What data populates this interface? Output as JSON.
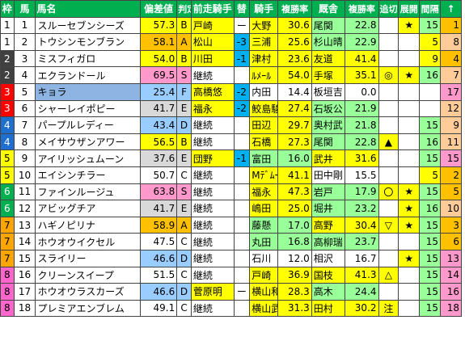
{
  "headers": [
    "枠",
    "馬",
    "馬名",
    "偏差値",
    "判定",
    "前走騎手",
    "替",
    "騎手",
    "複勝率",
    "厩舎",
    "複勝率",
    "追切",
    "展開",
    "間隔",
    "↑"
  ],
  "wakuColors": {
    "1": "#ffffff",
    "2": "#404040",
    "3": "#ff0000",
    "4": "#1f6fd1",
    "5": "#ffff00",
    "6": "#00b050",
    "7": "#ffa500",
    "8": "#ff66cc"
  },
  "rows": [
    {
      "waku": "1",
      "num": "1",
      "name": "スルーセブンシーズ",
      "score": "57.3",
      "grade": "B",
      "prev": "戸崎",
      "swap": "ー",
      "jockey": "大野",
      "jrate": "30.6",
      "stable": "尾関",
      "srate": "22.8",
      "oikiri": "",
      "tenkai": "★",
      "interval": "15",
      "arrow": "1"
    },
    {
      "waku": "1",
      "num": "2",
      "name": "トウシンモンブラン",
      "score": "58.1",
      "grade": "A",
      "prev": "松山",
      "swap": "-3",
      "jockey": "三浦",
      "jrate": "25.6",
      "stable": "杉山晴",
      "srate": "22.9",
      "oikiri": "",
      "tenkai": "",
      "interval": "5",
      "arrow": "8"
    },
    {
      "waku": "2",
      "num": "3",
      "name": "ミスフィガロ",
      "score": "54.0",
      "grade": "B",
      "prev": "川田",
      "swap": "-1",
      "jockey": "津村",
      "jrate": "23.6",
      "stable": "友道",
      "srate": "41.4",
      "oikiri": "",
      "tenkai": "",
      "interval": "9",
      "arrow": "4"
    },
    {
      "waku": "2",
      "num": "4",
      "name": "エクランドール",
      "score": "69.5",
      "grade": "S",
      "prev": "継続",
      "swap": "",
      "jockey": "ﾙﾒｰﾙ",
      "jrate": "54.0",
      "stable": "手塚",
      "srate": "35.1",
      "oikiri": "◎",
      "tenkai": "★",
      "interval": "16",
      "arrow": "7"
    },
    {
      "waku": "3",
      "num": "5",
      "name": "キョラ",
      "score": "25.4",
      "grade": "F",
      "prev": "高橋悠",
      "swap": "-2",
      "jockey": "内田",
      "jrate": "14.4",
      "stable": "板垣吉",
      "srate": "0.0",
      "oikiri": "",
      "tenkai": "",
      "interval": "",
      "arrow": "17"
    },
    {
      "waku": "3",
      "num": "6",
      "name": "シャーレイポピー",
      "score": "41.7",
      "grade": "E",
      "prev": "福永",
      "swap": "-2",
      "jockey": "鮫島駿",
      "jrate": "27.4",
      "stable": "石坂公",
      "srate": "21.9",
      "oikiri": "",
      "tenkai": "",
      "interval": "",
      "arrow": "12"
    },
    {
      "waku": "4",
      "num": "7",
      "name": "パープルレディー",
      "score": "43.4",
      "grade": "D",
      "prev": "継続",
      "swap": "",
      "jockey": "田辺",
      "jrate": "29.7",
      "stable": "奥村武",
      "srate": "21.8",
      "oikiri": "",
      "tenkai": "",
      "interval": "15",
      "arrow": "9"
    },
    {
      "waku": "4",
      "num": "8",
      "name": "メイサウザンアワー",
      "score": "56.5",
      "grade": "B",
      "prev": "継続",
      "swap": "",
      "jockey": "石橋",
      "jrate": "27.3",
      "stable": "尾関",
      "srate": "22.8",
      "oikiri": "▲",
      "tenkai": "",
      "interval": "16",
      "arrow": "11"
    },
    {
      "waku": "5",
      "num": "9",
      "name": "アイリッシュムーン",
      "score": "37.6",
      "grade": "E",
      "prev": "団野",
      "swap": "-1",
      "jockey": "富田",
      "jrate": "16.0",
      "stable": "武井",
      "srate": "31.6",
      "oikiri": "",
      "tenkai": "",
      "interval": "15",
      "arrow": "15"
    },
    {
      "waku": "5",
      "num": "10",
      "name": "エイシンチラー",
      "score": "50.7",
      "grade": "C",
      "prev": "継続",
      "swap": "",
      "jockey": "Mﾃﾞﾑｰﾛ",
      "jrate": "41.1",
      "stable": "田中剛",
      "srate": "15.5",
      "oikiri": "",
      "tenkai": "",
      "interval": "5",
      "arrow": "2"
    },
    {
      "waku": "6",
      "num": "11",
      "name": "ファインルージュ",
      "score": "63.8",
      "grade": "S",
      "prev": "継続",
      "swap": "",
      "jockey": "福永",
      "jrate": "47.3",
      "stable": "岩戸",
      "srate": "17.9",
      "oikiri": "〇",
      "tenkai": "★",
      "interval": "15",
      "arrow": "5"
    },
    {
      "waku": "6",
      "num": "12",
      "name": "アビッグチア",
      "score": "41.7",
      "grade": "E",
      "prev": "継続",
      "swap": "",
      "jockey": "嶋田",
      "jrate": "25.0",
      "stable": "堀井",
      "srate": "23.2",
      "oikiri": "",
      "tenkai": "★",
      "interval": "16",
      "arrow": "10"
    },
    {
      "waku": "7",
      "num": "13",
      "name": "ハギノピリナ",
      "score": "58.9",
      "grade": "A",
      "prev": "継続",
      "swap": "",
      "jockey": "藤懸",
      "jrate": "17.0",
      "stable": "高野",
      "srate": "30.4",
      "oikiri": "▽",
      "tenkai": "★",
      "interval": "15",
      "arrow": "3"
    },
    {
      "waku": "7",
      "num": "14",
      "name": "ホウオウイクセル",
      "score": "47.5",
      "grade": "C",
      "prev": "継続",
      "swap": "",
      "jockey": "丸田",
      "jrate": "16.8",
      "stable": "高柳瑞",
      "srate": "23.7",
      "oikiri": "",
      "tenkai": "",
      "interval": "15",
      "arrow": "6"
    },
    {
      "waku": "7",
      "num": "15",
      "name": "スライリー",
      "score": "46.6",
      "grade": "D",
      "prev": "継続",
      "swap": "",
      "jockey": "石川",
      "jrate": "12.0",
      "stable": "相沢",
      "srate": "16.7",
      "oikiri": "",
      "tenkai": "★",
      "interval": "15",
      "arrow": "13"
    },
    {
      "waku": "8",
      "num": "16",
      "name": "クリーンスイープ",
      "score": "51.5",
      "grade": "C",
      "prev": "継続",
      "swap": "",
      "jockey": "戸崎",
      "jrate": "36.9",
      "stable": "国枝",
      "srate": "41.3",
      "oikiri": "△",
      "tenkai": "",
      "interval": "15",
      "arrow": "14"
    },
    {
      "waku": "8",
      "num": "17",
      "name": "ホウオウラスカーズ",
      "score": "46.6",
      "grade": "D",
      "prev": "菅原明",
      "swap": "ー",
      "jockey": "横山和",
      "jrate": "28.3",
      "stable": "高木",
      "srate": "24.4",
      "oikiri": "",
      "tenkai": "",
      "interval": "15",
      "arrow": "16"
    },
    {
      "waku": "8",
      "num": "18",
      "name": "プレミアエンブレム",
      "score": "49.1",
      "grade": "C",
      "prev": "継続",
      "swap": "",
      "jockey": "横山武",
      "jrate": "31.3",
      "stable": "田村",
      "srate": "30.2",
      "oikiri": "注",
      "tenkai": "",
      "interval": "15",
      "arrow": "18"
    }
  ]
}
